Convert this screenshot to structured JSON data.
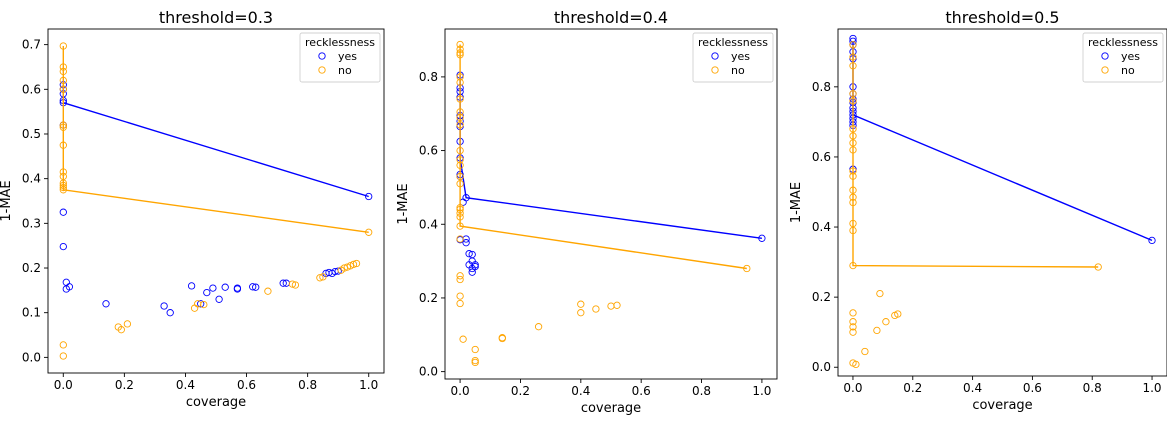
{
  "colors": {
    "yes": "#0000ff",
    "no": "#ffa500"
  },
  "chart_data": [
    {
      "type": "scatter",
      "title": "threshold=0.3",
      "xlabel": "coverage",
      "ylabel": "1-MAE",
      "xlim": [
        -0.05,
        1.05
      ],
      "ylim": [
        -0.035,
        0.735
      ],
      "xticks": [
        "0.0",
        "0.2",
        "0.4",
        "0.6",
        "0.8",
        "1.0"
      ],
      "yticks": [
        "0.0",
        "0.1",
        "0.2",
        "0.3",
        "0.4",
        "0.5",
        "0.6",
        "0.7"
      ],
      "legend": {
        "title": "recklessness",
        "position": "top-right",
        "entries": [
          "yes",
          "no"
        ]
      },
      "series": [
        {
          "name": "yes",
          "color_key": "yes",
          "line": [
            [
              0.0,
              0.61
            ],
            [
              0.0,
              0.57
            ],
            [
              1.0,
              0.36
            ]
          ],
          "points": [
            [
              0.0,
              0.61
            ],
            [
              0.0,
              0.6
            ],
            [
              0.0,
              0.59
            ],
            [
              0.0,
              0.575
            ],
            [
              0.0,
              0.57
            ],
            [
              0.0,
              0.52
            ],
            [
              0.0,
              0.325
            ],
            [
              0.0,
              0.248
            ],
            [
              0.01,
              0.168
            ],
            [
              0.01,
              0.153
            ],
            [
              0.02,
              0.158
            ],
            [
              0.14,
              0.12
            ],
            [
              0.33,
              0.115
            ],
            [
              0.35,
              0.1
            ],
            [
              0.42,
              0.16
            ],
            [
              0.45,
              0.12
            ],
            [
              0.47,
              0.145
            ],
            [
              0.49,
              0.155
            ],
            [
              0.51,
              0.13
            ],
            [
              0.53,
              0.157
            ],
            [
              0.57,
              0.155
            ],
            [
              0.57,
              0.153
            ],
            [
              0.62,
              0.158
            ],
            [
              0.63,
              0.157
            ],
            [
              0.72,
              0.166
            ],
            [
              0.73,
              0.166
            ],
            [
              0.86,
              0.188
            ],
            [
              0.87,
              0.19
            ],
            [
              0.88,
              0.188
            ],
            [
              0.89,
              0.192
            ],
            [
              0.9,
              0.193
            ],
            [
              1.0,
              0.36
            ]
          ]
        },
        {
          "name": "no",
          "color_key": "no",
          "line": [
            [
              0.0,
              0.697
            ],
            [
              0.0,
              0.375
            ],
            [
              1.0,
              0.28
            ]
          ],
          "points": [
            [
              0.0,
              0.697
            ],
            [
              0.0,
              0.65
            ],
            [
              0.0,
              0.64
            ],
            [
              0.0,
              0.62
            ],
            [
              0.0,
              0.6
            ],
            [
              0.0,
              0.52
            ],
            [
              0.0,
              0.515
            ],
            [
              0.0,
              0.475
            ],
            [
              0.0,
              0.415
            ],
            [
              0.0,
              0.405
            ],
            [
              0.0,
              0.39
            ],
            [
              0.0,
              0.385
            ],
            [
              0.0,
              0.38
            ],
            [
              0.0,
              0.375
            ],
            [
              0.0,
              0.028
            ],
            [
              0.0,
              0.003
            ],
            [
              0.18,
              0.068
            ],
            [
              0.19,
              0.062
            ],
            [
              0.21,
              0.075
            ],
            [
              0.43,
              0.11
            ],
            [
              0.44,
              0.12
            ],
            [
              0.46,
              0.118
            ],
            [
              0.67,
              0.148
            ],
            [
              0.75,
              0.164
            ],
            [
              0.76,
              0.162
            ],
            [
              0.84,
              0.178
            ],
            [
              0.85,
              0.18
            ],
            [
              0.91,
              0.195
            ],
            [
              0.92,
              0.2
            ],
            [
              0.93,
              0.202
            ],
            [
              0.94,
              0.205
            ],
            [
              0.95,
              0.208
            ],
            [
              0.96,
              0.21
            ],
            [
              1.0,
              0.28
            ]
          ]
        }
      ]
    },
    {
      "type": "scatter",
      "title": "threshold=0.4",
      "xlabel": "coverage",
      "ylabel": "1-MAE",
      "xlim": [
        -0.05,
        1.05
      ],
      "ylim": [
        -0.02,
        0.93
      ],
      "xticks": [
        "0.0",
        "0.2",
        "0.4",
        "0.6",
        "0.8",
        "1.0"
      ],
      "yticks": [
        "0.0",
        "0.2",
        "0.4",
        "0.6",
        "0.8"
      ],
      "legend": {
        "title": "recklessness",
        "position": "top-right",
        "entries": [
          "yes",
          "no"
        ]
      },
      "series": [
        {
          "name": "yes",
          "color_key": "yes",
          "line": [
            [
              0.0,
              0.805
            ],
            [
              0.0,
              0.58
            ],
            [
              0.02,
              0.472
            ],
            [
              1.0,
              0.362
            ]
          ],
          "points": [
            [
              0.0,
              0.805
            ],
            [
              0.0,
              0.77
            ],
            [
              0.0,
              0.76
            ],
            [
              0.0,
              0.745
            ],
            [
              0.0,
              0.695
            ],
            [
              0.0,
              0.68
            ],
            [
              0.0,
              0.665
            ],
            [
              0.0,
              0.625
            ],
            [
              0.0,
              0.58
            ],
            [
              0.0,
              0.535
            ],
            [
              0.0,
              0.53
            ],
            [
              0.01,
              0.46
            ],
            [
              0.0,
              0.358
            ],
            [
              0.02,
              0.36
            ],
            [
              0.02,
              0.35
            ],
            [
              0.03,
              0.32
            ],
            [
              0.04,
              0.318
            ],
            [
              0.02,
              0.472
            ],
            [
              0.03,
              0.29
            ],
            [
              0.04,
              0.28
            ],
            [
              0.04,
              0.27
            ],
            [
              0.05,
              0.285
            ],
            [
              0.05,
              0.29
            ],
            [
              0.04,
              0.3
            ],
            [
              1.0,
              0.362
            ]
          ]
        },
        {
          "name": "no",
          "color_key": "no",
          "line": [
            [
              0.0,
              0.888
            ],
            [
              0.0,
              0.395
            ],
            [
              0.95,
              0.28
            ]
          ],
          "points": [
            [
              0.0,
              0.888
            ],
            [
              0.0,
              0.875
            ],
            [
              0.0,
              0.865
            ],
            [
              0.0,
              0.86
            ],
            [
              0.0,
              0.8
            ],
            [
              0.0,
              0.785
            ],
            [
              0.0,
              0.74
            ],
            [
              0.0,
              0.705
            ],
            [
              0.0,
              0.69
            ],
            [
              0.0,
              0.67
            ],
            [
              0.0,
              0.6
            ],
            [
              0.0,
              0.575
            ],
            [
              0.0,
              0.56
            ],
            [
              0.0,
              0.53
            ],
            [
              0.0,
              0.51
            ],
            [
              0.0,
              0.445
            ],
            [
              0.0,
              0.44
            ],
            [
              0.0,
              0.43
            ],
            [
              0.0,
              0.42
            ],
            [
              0.0,
              0.395
            ],
            [
              0.0,
              0.36
            ],
            [
              0.0,
              0.26
            ],
            [
              0.0,
              0.25
            ],
            [
              0.0,
              0.205
            ],
            [
              0.0,
              0.185
            ],
            [
              0.01,
              0.088
            ],
            [
              0.05,
              0.06
            ],
            [
              0.05,
              0.03
            ],
            [
              0.05,
              0.025
            ],
            [
              0.14,
              0.092
            ],
            [
              0.14,
              0.09
            ],
            [
              0.26,
              0.122
            ],
            [
              0.4,
              0.183
            ],
            [
              0.4,
              0.16
            ],
            [
              0.45,
              0.17
            ],
            [
              0.5,
              0.178
            ],
            [
              0.52,
              0.18
            ],
            [
              0.95,
              0.28
            ]
          ]
        }
      ]
    },
    {
      "type": "scatter",
      "title": "threshold=0.5",
      "xlabel": "coverage",
      "ylabel": "1-MAE",
      "xlim": [
        -0.05,
        1.05
      ],
      "ylim": [
        -0.025,
        0.965
      ],
      "xticks": [
        "0.0",
        "0.2",
        "0.4",
        "0.6",
        "0.8",
        "1.0"
      ],
      "yticks": [
        "0.0",
        "0.2",
        "0.4",
        "0.6",
        "0.8"
      ],
      "legend": {
        "title": "recklessness",
        "position": "top-right",
        "entries": [
          "yes",
          "no"
        ]
      },
      "series": [
        {
          "name": "yes",
          "color_key": "yes",
          "line": [
            [
              0.0,
              0.93
            ],
            [
              0.0,
              0.72
            ],
            [
              1.0,
              0.362
            ]
          ],
          "points": [
            [
              0.0,
              0.938
            ],
            [
              0.0,
              0.93
            ],
            [
              0.0,
              0.92
            ],
            [
              0.0,
              0.9
            ],
            [
              0.0,
              0.88
            ],
            [
              0.0,
              0.8
            ],
            [
              0.0,
              0.78
            ],
            [
              0.0,
              0.765
            ],
            [
              0.0,
              0.755
            ],
            [
              0.0,
              0.74
            ],
            [
              0.0,
              0.73
            ],
            [
              0.0,
              0.72
            ],
            [
              0.0,
              0.71
            ],
            [
              0.0,
              0.7
            ],
            [
              0.0,
              0.69
            ],
            [
              0.0,
              0.565
            ],
            [
              1.0,
              0.362
            ]
          ]
        },
        {
          "name": "no",
          "color_key": "no",
          "line": [
            [
              0.0,
              0.92
            ],
            [
              0.0,
              0.29
            ],
            [
              0.82,
              0.286
            ]
          ],
          "points": [
            [
              0.0,
              0.92
            ],
            [
              0.0,
              0.885
            ],
            [
              0.0,
              0.86
            ],
            [
              0.0,
              0.78
            ],
            [
              0.0,
              0.76
            ],
            [
              0.0,
              0.68
            ],
            [
              0.0,
              0.66
            ],
            [
              0.0,
              0.64
            ],
            [
              0.0,
              0.62
            ],
            [
              0.0,
              0.56
            ],
            [
              0.0,
              0.545
            ],
            [
              0.0,
              0.505
            ],
            [
              0.0,
              0.485
            ],
            [
              0.0,
              0.47
            ],
            [
              0.0,
              0.41
            ],
            [
              0.0,
              0.39
            ],
            [
              0.0,
              0.29
            ],
            [
              0.0,
              0.155
            ],
            [
              0.0,
              0.13
            ],
            [
              0.0,
              0.115
            ],
            [
              0.0,
              0.1
            ],
            [
              0.0,
              0.012
            ],
            [
              0.01,
              0.008
            ],
            [
              0.04,
              0.045
            ],
            [
              0.08,
              0.105
            ],
            [
              0.09,
              0.21
            ],
            [
              0.11,
              0.13
            ],
            [
              0.14,
              0.148
            ],
            [
              0.15,
              0.152
            ],
            [
              0.82,
              0.286
            ]
          ]
        }
      ]
    }
  ]
}
